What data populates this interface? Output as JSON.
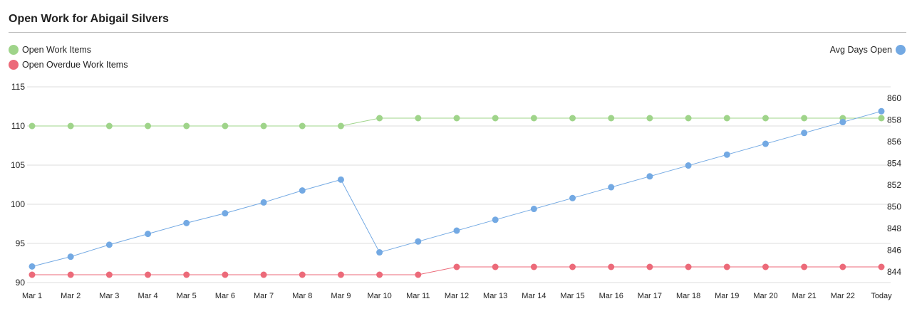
{
  "title": "Open Work for Abigail Silvers",
  "chart_data": {
    "type": "line",
    "title": "Open Work for Abigail Silvers",
    "categories": [
      "Mar 1",
      "Mar 2",
      "Mar 3",
      "Mar 4",
      "Mar 5",
      "Mar 6",
      "Mar 7",
      "Mar 8",
      "Mar 9",
      "Mar 10",
      "Mar 11",
      "Mar 12",
      "Mar 13",
      "Mar 14",
      "Mar 15",
      "Mar 16",
      "Mar 17",
      "Mar 18",
      "Mar 19",
      "Mar 20",
      "Mar 21",
      "Mar 22",
      "Today"
    ],
    "left_axis": {
      "ylim": [
        90,
        115
      ],
      "ticks": [
        90,
        95,
        100,
        105,
        110,
        115
      ]
    },
    "right_axis": {
      "ylim": [
        844,
        860
      ],
      "ticks": [
        844,
        846,
        848,
        850,
        852,
        854,
        856,
        858,
        860
      ]
    },
    "grid": true,
    "series": [
      {
        "name": "Open Work Items",
        "axis": "left",
        "color": "#9fd48a",
        "values": [
          110,
          110,
          110,
          110,
          110,
          110,
          110,
          110,
          110,
          111,
          111,
          111,
          111,
          111,
          111,
          111,
          111,
          111,
          111,
          111,
          111,
          111,
          111
        ]
      },
      {
        "name": "Open Overdue Work Items",
        "axis": "left",
        "color": "#ec6a79",
        "values": [
          91,
          91,
          91,
          91,
          91,
          91,
          91,
          91,
          91,
          91,
          91,
          92,
          92,
          92,
          92,
          92,
          92,
          92,
          92,
          92,
          92,
          92,
          92
        ]
      },
      {
        "name": "Avg Days Open",
        "axis": "right",
        "color": "#73a9e3",
        "values": [
          844.5,
          845.4,
          846.5,
          847.5,
          848.5,
          849.4,
          850.4,
          851.5,
          852.5,
          845.8,
          846.8,
          847.8,
          848.8,
          849.8,
          850.8,
          851.8,
          852.8,
          853.8,
          854.8,
          855.8,
          856.8,
          857.8,
          858.8
        ]
      }
    ],
    "legend": {
      "left": [
        "Open Work Items",
        "Open Overdue Work Items"
      ],
      "right": [
        "Avg Days Open"
      ],
      "placement": "top"
    }
  }
}
